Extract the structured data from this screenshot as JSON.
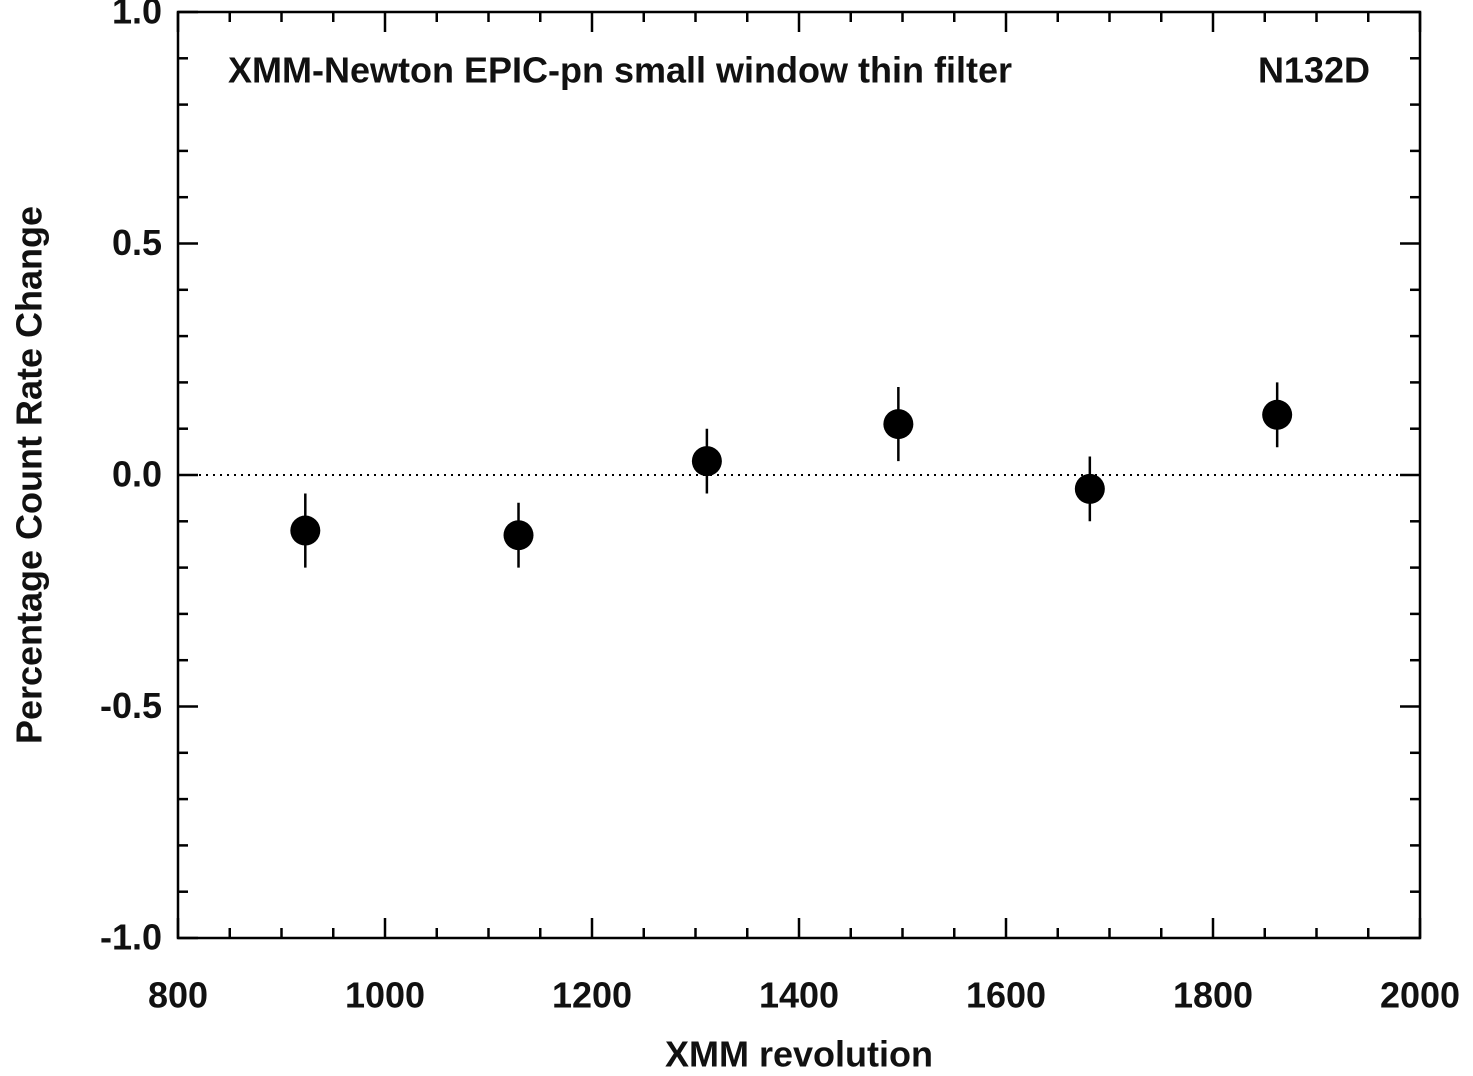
{
  "chart_data": {
    "type": "scatter",
    "annotations": [
      "XMM-Newton EPIC-pn small window thin filter",
      "N132D"
    ],
    "xlabel": "XMM revolution",
    "ylabel": "Percentage Count Rate Change",
    "x": [
      923,
      1129,
      1311,
      1496,
      1681,
      1862
    ],
    "series": [
      {
        "color": "#000000",
        "values": [
          -0.12,
          -0.13,
          0.03,
          0.11,
          -0.03,
          0.13
        ],
        "errors": [
          0.08,
          0.07,
          0.07,
          0.08,
          0.07,
          0.07
        ]
      }
    ],
    "xlim": [
      800,
      2000
    ],
    "ylim": [
      -1.0,
      1.0
    ],
    "xticks": [
      800,
      1000,
      1200,
      1400,
      1600,
      1800,
      2000
    ],
    "yticks": [
      {
        "value": 1.0,
        "label": "1.0"
      },
      {
        "value": 0.5,
        "label": "0.5"
      },
      {
        "value": 0,
        "label": "0.0"
      },
      {
        "value": -0.5,
        "label": "-0.5"
      },
      {
        "value": -1.0,
        "label": "-1.0"
      }
    ],
    "xminorticks": [
      850,
      900,
      950,
      1050,
      1100,
      1150,
      1250,
      1300,
      1350,
      1450,
      1500,
      1550,
      1650,
      1700,
      1750,
      1850,
      1900,
      1950
    ],
    "yminorticks": [
      -0.9,
      -0.8,
      -0.7,
      -0.6,
      -0.4,
      -0.3,
      -0.2,
      -0.1,
      0.1,
      0.2,
      0.3,
      0.4,
      0.6,
      0.7,
      0.8,
      0.9
    ],
    "reference_line": 0
  }
}
